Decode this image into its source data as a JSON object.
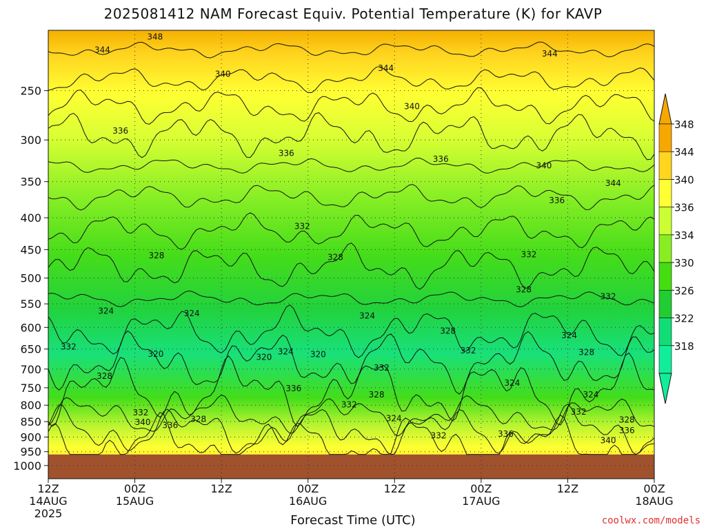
{
  "title": "2025081412 NAM Forecast Equiv. Potential Temperature (K) for KAVP",
  "credit": "coolwx.com/models",
  "chart_data": {
    "type": "heatmap",
    "title": "2025081412 NAM Forecast Equiv. Potential Temperature (K) for KAVP",
    "xlabel": "Forecast Time (UTC)",
    "ylabel": "",
    "x_range_hours": [
      0,
      84
    ],
    "y_range_hpa": [
      200,
      1050
    ],
    "y_scale": "log-pressure (inverted)",
    "grid": true,
    "x_ticks": [
      {
        "hour": 0,
        "lines": [
          "12Z",
          "14AUG",
          "2025"
        ]
      },
      {
        "hour": 12,
        "lines": [
          "00Z",
          "15AUG"
        ]
      },
      {
        "hour": 24,
        "lines": [
          "12Z"
        ]
      },
      {
        "hour": 36,
        "lines": [
          "00Z",
          "16AUG"
        ]
      },
      {
        "hour": 48,
        "lines": [
          "12Z"
        ]
      },
      {
        "hour": 60,
        "lines": [
          "00Z",
          "17AUG"
        ]
      },
      {
        "hour": 72,
        "lines": [
          "12Z"
        ]
      },
      {
        "hour": 84,
        "lines": [
          "00Z",
          "18AUG"
        ]
      }
    ],
    "y_ticks": [
      250,
      300,
      350,
      400,
      450,
      500,
      550,
      600,
      650,
      700,
      750,
      800,
      850,
      900,
      950,
      1000
    ],
    "colorbar": {
      "levels": [
        318,
        322,
        326,
        330,
        334,
        336,
        340,
        344,
        348
      ],
      "labels": [
        "348",
        "344",
        "340",
        "336",
        "334",
        "330",
        "326",
        "322",
        "318"
      ],
      "colors": [
        "#f7a800",
        "#ffd51e",
        "#ffff33",
        "#ccff33",
        "#88ee22",
        "#44dd11",
        "#22cc33",
        "#11dd77",
        "#11ee99"
      ],
      "extend": "both"
    },
    "contour_labels": [
      {
        "hour": 14.8,
        "p": 205,
        "text": "348"
      },
      {
        "hour": 7.5,
        "p": 215,
        "text": "344"
      },
      {
        "hour": 46.8,
        "p": 230,
        "text": "344"
      },
      {
        "hour": 69.5,
        "p": 218,
        "text": "344"
      },
      {
        "hour": 24.2,
        "p": 235,
        "text": "340"
      },
      {
        "hour": 50.4,
        "p": 265,
        "text": "340"
      },
      {
        "hour": 68.7,
        "p": 330,
        "text": "340"
      },
      {
        "hour": 10,
        "p": 290,
        "text": "336"
      },
      {
        "hour": 33,
        "p": 315,
        "text": "336"
      },
      {
        "hour": 54.4,
        "p": 322,
        "text": "336"
      },
      {
        "hour": 70.5,
        "p": 375,
        "text": "336"
      },
      {
        "hour": 78.3,
        "p": 352,
        "text": "344"
      },
      {
        "hour": 35.2,
        "p": 413,
        "text": "332"
      },
      {
        "hour": 66.6,
        "p": 458,
        "text": "332"
      },
      {
        "hour": 77.6,
        "p": 535,
        "text": "332"
      },
      {
        "hour": 15,
        "p": 460,
        "text": "328"
      },
      {
        "hour": 39.8,
        "p": 463,
        "text": "328"
      },
      {
        "hour": 65.9,
        "p": 522,
        "text": "328"
      },
      {
        "hour": 55.4,
        "p": 608,
        "text": "328"
      },
      {
        "hour": 74.6,
        "p": 658,
        "text": "328"
      },
      {
        "hour": 7.8,
        "p": 718,
        "text": "328"
      },
      {
        "hour": 45.5,
        "p": 770,
        "text": "328"
      },
      {
        "hour": 20.8,
        "p": 842,
        "text": "328"
      },
      {
        "hour": 80.2,
        "p": 845,
        "text": "328"
      },
      {
        "hour": 8,
        "p": 565,
        "text": "324"
      },
      {
        "hour": 19.9,
        "p": 570,
        "text": "324"
      },
      {
        "hour": 44.2,
        "p": 575,
        "text": "324"
      },
      {
        "hour": 32.9,
        "p": 656,
        "text": "324"
      },
      {
        "hour": 72.2,
        "p": 618,
        "text": "324"
      },
      {
        "hour": 64.3,
        "p": 737,
        "text": "324"
      },
      {
        "hour": 47.9,
        "p": 840,
        "text": "324"
      },
      {
        "hour": 75.2,
        "p": 770,
        "text": "324"
      },
      {
        "hour": 14.9,
        "p": 662,
        "text": "320"
      },
      {
        "hour": 29.9,
        "p": 670,
        "text": "320"
      },
      {
        "hour": 37.4,
        "p": 663,
        "text": "320"
      },
      {
        "hour": 2.8,
        "p": 645,
        "text": "332"
      },
      {
        "hour": 46.2,
        "p": 697,
        "text": "332"
      },
      {
        "hour": 58.2,
        "p": 654,
        "text": "332"
      },
      {
        "hour": 41.7,
        "p": 798,
        "text": "332"
      },
      {
        "hour": 12.8,
        "p": 822,
        "text": "332"
      },
      {
        "hour": 54.1,
        "p": 895,
        "text": "332"
      },
      {
        "hour": 73.5,
        "p": 820,
        "text": "332"
      },
      {
        "hour": 34,
        "p": 752,
        "text": "336"
      },
      {
        "hour": 16.9,
        "p": 862,
        "text": "336"
      },
      {
        "hour": 63.4,
        "p": 890,
        "text": "336"
      },
      {
        "hour": 80.2,
        "p": 878,
        "text": "336"
      },
      {
        "hour": 13.1,
        "p": 852,
        "text": "340"
      },
      {
        "hour": 77.6,
        "p": 912,
        "text": "340"
      }
    ],
    "ground_fill_color": "#a0522d"
  }
}
